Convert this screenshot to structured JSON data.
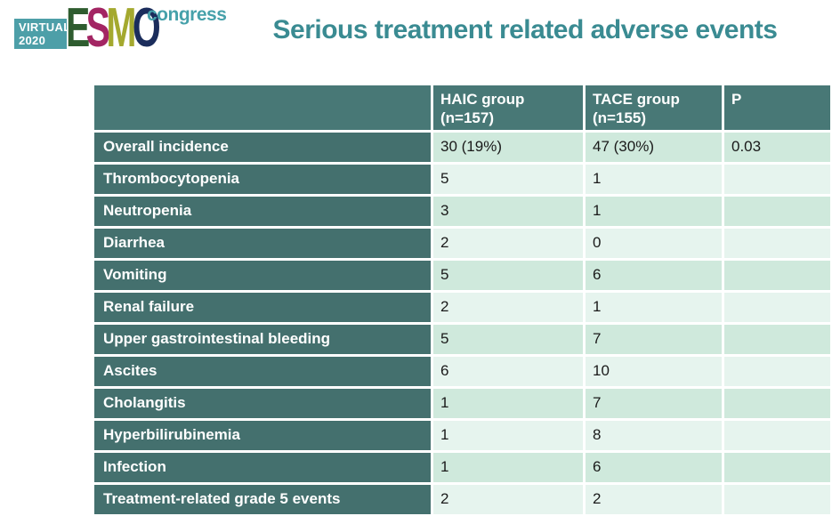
{
  "logo": {
    "virtual_line1": "VIRTUAL",
    "virtual_line2": "2020",
    "esmo_letters": [
      {
        "ch": "E",
        "color": "#2e5c2f"
      },
      {
        "ch": "S",
        "color": "#a32563"
      },
      {
        "ch": "M",
        "color": "#a4a92f"
      },
      {
        "ch": "O",
        "color": "#1b2d5c"
      }
    ],
    "congress": "congress"
  },
  "title": "Serious treatment related adverse events",
  "colors": {
    "title": "#3a8b92",
    "header_bg": "#487876",
    "label_bg": "#44706e",
    "row_dark": "#cfe9dc",
    "row_light": "#e6f4ee",
    "virtual_box": "#4d9fa8",
    "congress": "#46a1aa",
    "data_text": "#1a1a1a"
  },
  "table": {
    "headers": [
      {
        "line1": "",
        "line2": ""
      },
      {
        "line1": "HAIC group",
        "line2": "(n=157)"
      },
      {
        "line1": "TACE group",
        "line2": "(n=155)"
      },
      {
        "line1": "P",
        "line2": ""
      }
    ],
    "rows": [
      {
        "label": "Overall incidence",
        "haic": "30 (19%)",
        "tace": "47 (30%)",
        "p": "0.03"
      },
      {
        "label": "Thrombocytopenia",
        "haic": "5",
        "tace": "1",
        "p": ""
      },
      {
        "label": "Neutropenia",
        "haic": "3",
        "tace": "1",
        "p": ""
      },
      {
        "label": "Diarrhea",
        "haic": "2",
        "tace": "0",
        "p": ""
      },
      {
        "label": "Vomiting",
        "haic": "5",
        "tace": "6",
        "p": ""
      },
      {
        "label": "Renal failure",
        "haic": "2",
        "tace": "1",
        "p": ""
      },
      {
        "label": "Upper gastrointestinal bleeding",
        "haic": "5",
        "tace": "7",
        "p": ""
      },
      {
        "label": "Ascites",
        "haic": "6",
        "tace": "10",
        "p": ""
      },
      {
        "label": "Cholangitis",
        "haic": "1",
        "tace": "7",
        "p": ""
      },
      {
        "label": "Hyperbilirubinemia",
        "haic": "1",
        "tace": "8",
        "p": ""
      },
      {
        "label": "Infection",
        "haic": "1",
        "tace": "6",
        "p": ""
      },
      {
        "label": "Treatment-related grade 5 events",
        "haic": "2",
        "tace": "2",
        "p": ""
      }
    ]
  }
}
